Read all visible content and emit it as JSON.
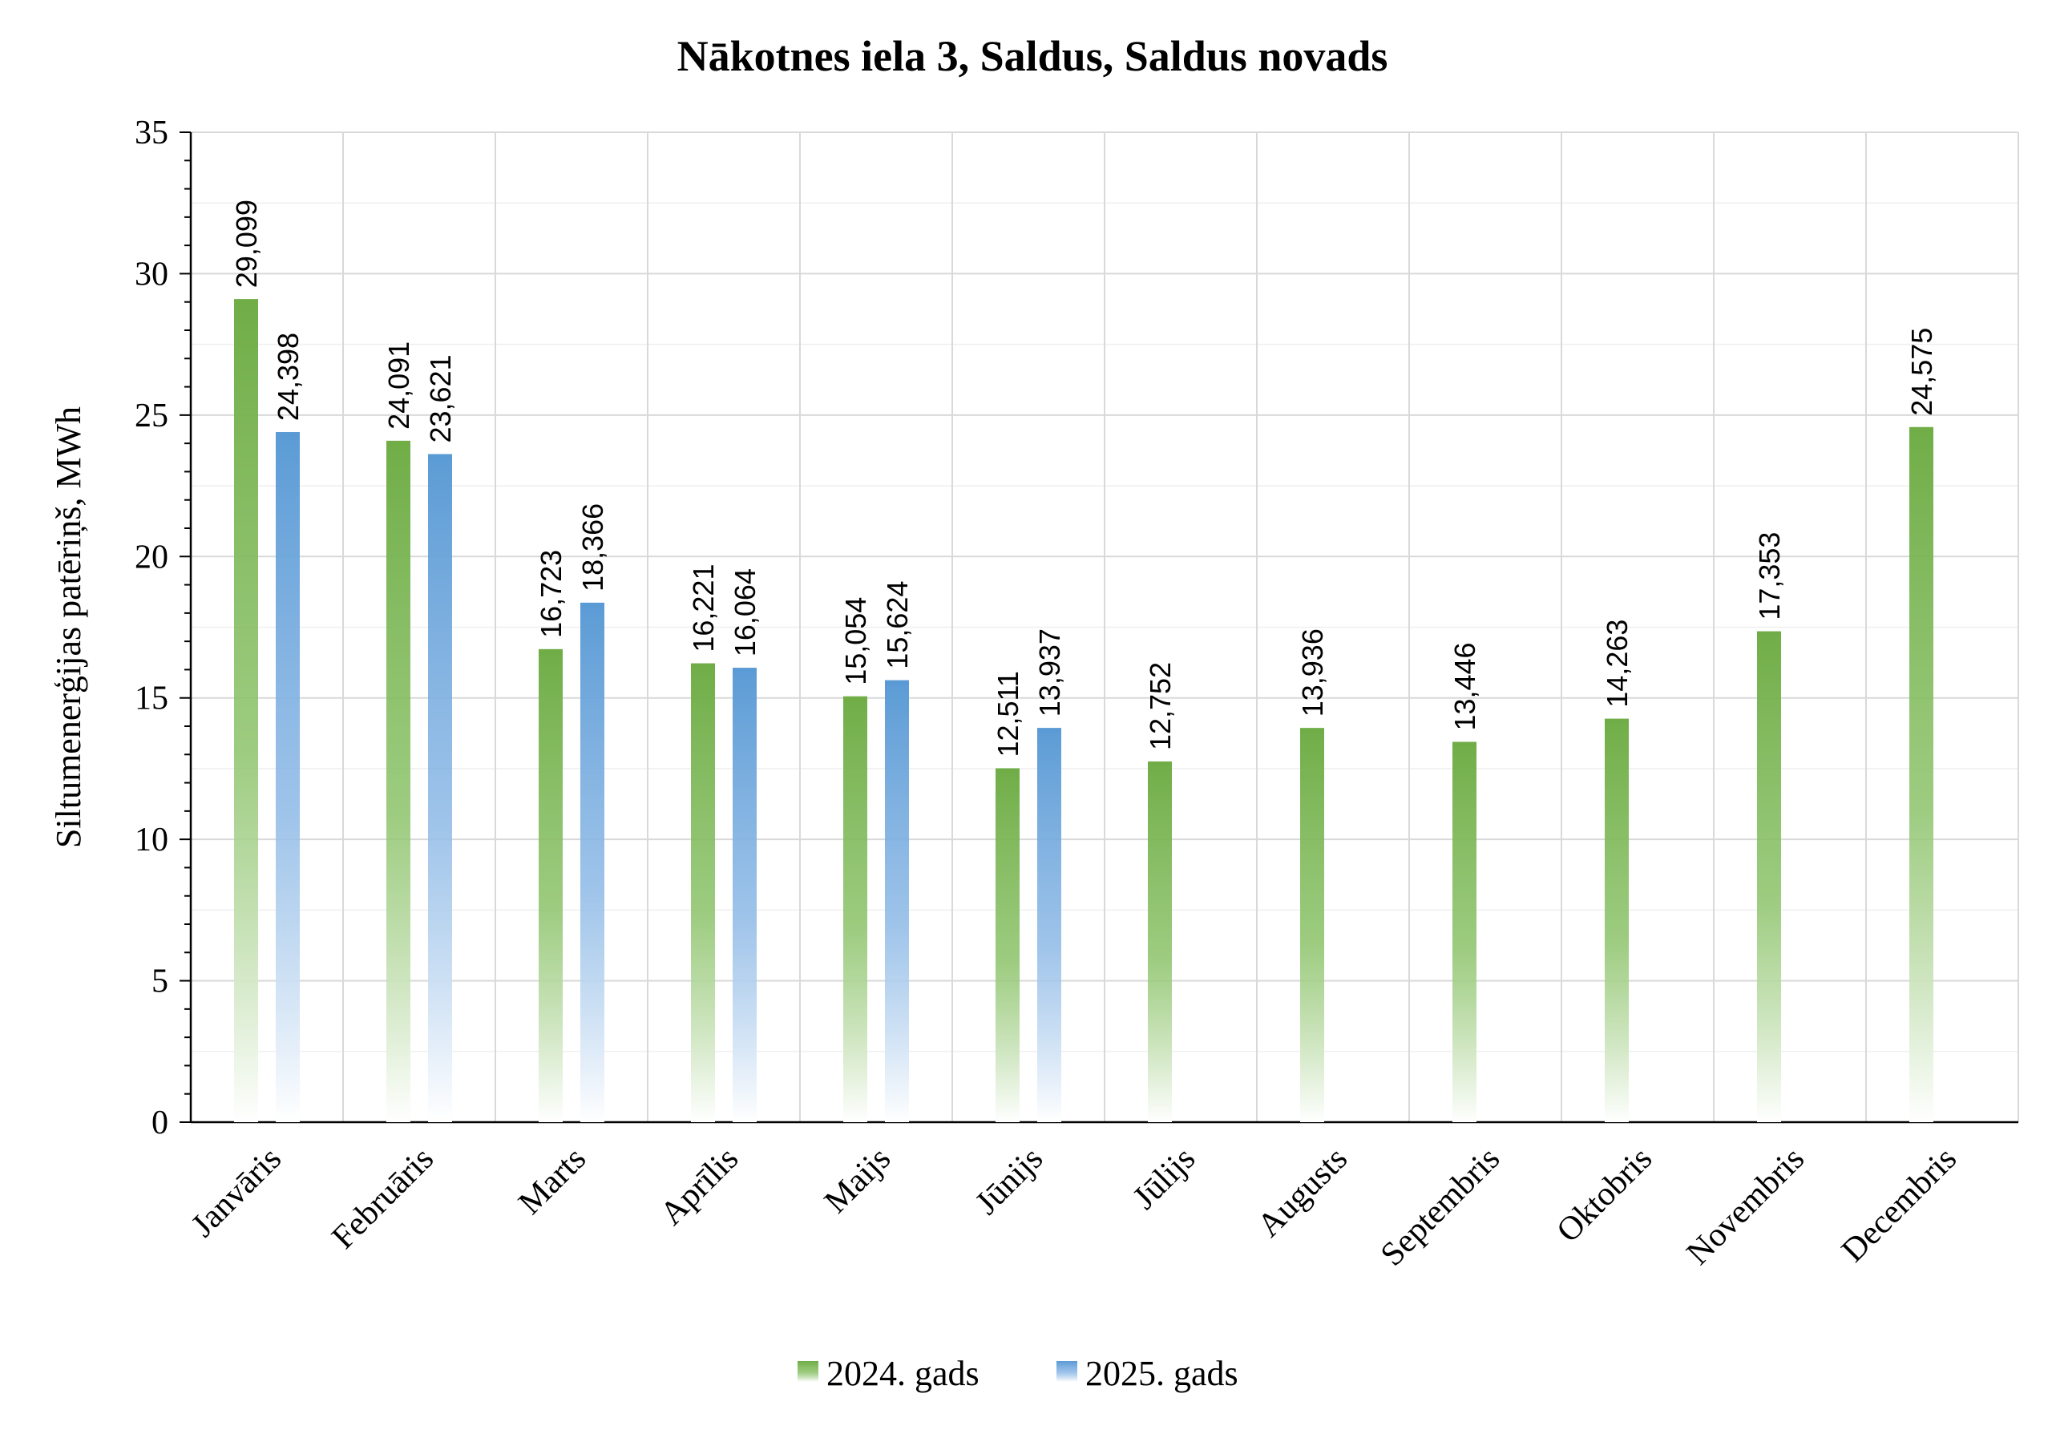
{
  "chart_data": {
    "type": "bar",
    "title": "Nākotnes iela 3, Saldus, Saldus novads",
    "xlabel": "",
    "ylabel": "Siltumenerģijas patēriņš, MWh",
    "ylim": [
      0,
      35
    ],
    "yticks": [
      0,
      5,
      10,
      15,
      20,
      25,
      30,
      35
    ],
    "grid": true,
    "legend_position": "bottom",
    "categories": [
      "Janvāris",
      "Februāris",
      "Marts",
      "Aprīlis",
      "Maijs",
      "Jūnijs",
      "Jūlijs",
      "Augusts",
      "Septembris",
      "Oktobris",
      "Novembris",
      "Decembris"
    ],
    "series": [
      {
        "name": "2024. gads",
        "color": "#70ad47",
        "values": [
          29.099,
          24.091,
          16.723,
          16.221,
          15.054,
          12.511,
          12.752,
          13.936,
          13.446,
          14.263,
          17.353,
          24.575
        ],
        "labels": [
          "29,099",
          "24,091",
          "16,723",
          "16,221",
          "15,054",
          "12,511",
          "12,752",
          "13,936",
          "13,446",
          "14,263",
          "17,353",
          "24,575"
        ]
      },
      {
        "name": "2025. gads",
        "color": "#5b9bd5",
        "values": [
          24.398,
          23.621,
          18.366,
          16.064,
          15.624,
          13.937,
          null,
          null,
          null,
          null,
          null,
          null
        ],
        "labels": [
          "24,398",
          "23,621",
          "18,366",
          "16,064",
          "15,624",
          "13,937",
          "",
          "",
          "",
          "",
          "",
          ""
        ]
      }
    ]
  }
}
